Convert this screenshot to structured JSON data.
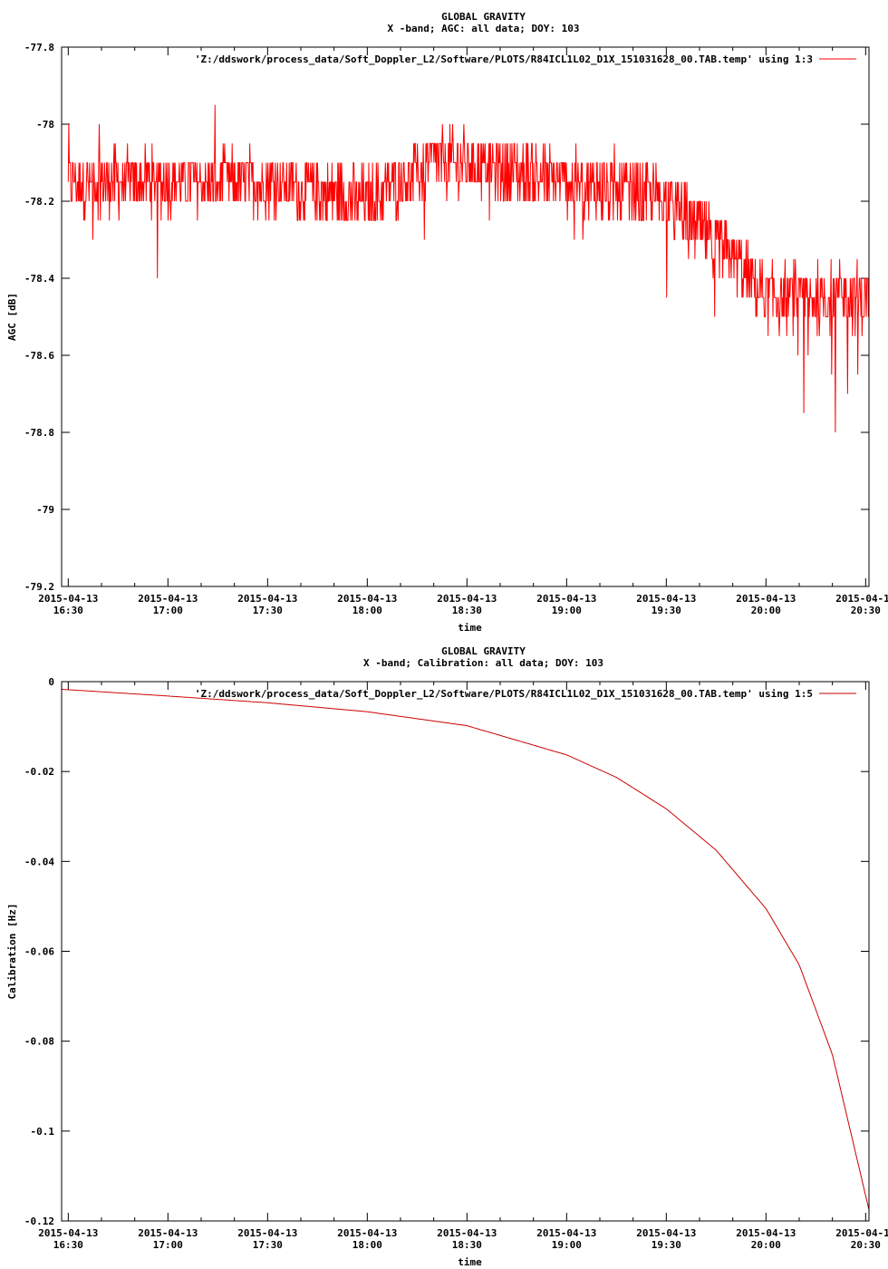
{
  "chart_data": [
    {
      "type": "line",
      "title": "GLOBAL GRAVITY",
      "subtitle": "X -band; AGC: all data; DOY: 103",
      "xlabel": "time",
      "ylabel": "AGC [dB]",
      "x_date": "2015-04-13",
      "x_ticks": [
        "16:30",
        "17:00",
        "17:30",
        "18:00",
        "18:30",
        "19:00",
        "19:30",
        "20:00",
        "20:30"
      ],
      "xlim": [
        "16:28",
        "20:31"
      ],
      "ylim": [
        -79.2,
        -77.8
      ],
      "y_ticks": [
        -77.8,
        -78,
        -78.2,
        -78.4,
        -78.6,
        -78.8,
        -79,
        -79.2
      ],
      "y_tick_labels": [
        "-77.8",
        "-78",
        "-78.2",
        "-78.4",
        "-78.6",
        "-78.8",
        "-79",
        "-79.2"
      ],
      "grid": false,
      "legend_position": "top-right",
      "series": [
        {
          "name": "'Z:/ddswork/process_data/Soft_Doppler_L2/Software/PLOTS/R84ICL1L02_D1X_151031628_00.TAB.temp' using 1:3",
          "color": "#ff0000",
          "style": "dense noisy trace, values quantized to 0.05 dB",
          "x": [
            "16:30",
            "17:00",
            "17:30",
            "18:00",
            "18:20",
            "18:30",
            "19:00",
            "19:30",
            "19:50",
            "20:00",
            "20:30"
          ],
          "y": [
            -78.15,
            -78.15,
            -78.15,
            -78.2,
            -78.1,
            -78.1,
            -78.15,
            -78.2,
            -78.35,
            -78.45,
            -78.45
          ]
        }
      ]
    },
    {
      "type": "line",
      "title": "GLOBAL GRAVITY",
      "subtitle": "X -band; Calibration: all data; DOY: 103",
      "xlabel": "time",
      "ylabel": "Calibration [Hz]",
      "x_date": "2015-04-13",
      "x_ticks": [
        "16:30",
        "17:00",
        "17:30",
        "18:00",
        "18:30",
        "19:00",
        "19:30",
        "20:00",
        "20:30"
      ],
      "xlim": [
        "16:28",
        "20:31"
      ],
      "ylim": [
        -0.12,
        0
      ],
      "y_ticks": [
        0,
        -0.02,
        -0.04,
        -0.06,
        -0.08,
        -0.1,
        -0.12
      ],
      "y_tick_labels": [
        "0",
        "-0.02",
        "-0.04",
        "-0.06",
        "-0.08",
        "-0.1",
        "-0.12"
      ],
      "grid": false,
      "legend_position": "top-right",
      "series": [
        {
          "name": "'Z:/ddswork/process_data/Soft_Doppler_L2/Software/PLOTS/R84ICL1L02_D1X_151031628_00.TAB.temp' using 1:5",
          "color": "#cc0000",
          "x": [
            "16:28",
            "17:00",
            "17:30",
            "18:00",
            "18:30",
            "19:00",
            "19:15",
            "19:30",
            "19:45",
            "20:00",
            "20:10",
            "20:20",
            "20:31"
          ],
          "y": [
            -0.0017,
            -0.0032,
            -0.0047,
            -0.0067,
            -0.0098,
            -0.0163,
            -0.0213,
            -0.0283,
            -0.0375,
            -0.0505,
            -0.063,
            -0.083,
            -0.1175
          ]
        }
      ]
    }
  ]
}
